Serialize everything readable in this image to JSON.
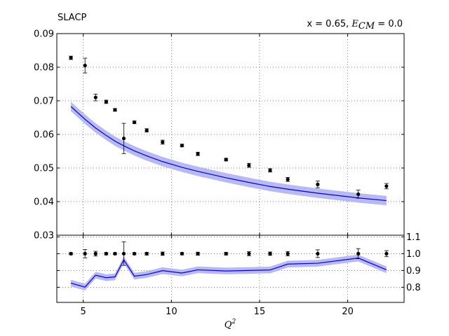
{
  "chart_data": [
    {
      "type": "line",
      "panel": "main",
      "title_left": "SLACP",
      "title_right": {
        "prefix": "x = 0.65, ",
        "sym": "E",
        "sub": "CM",
        "suffix": " = 0.0"
      },
      "xlim": [
        3.5,
        23.2
      ],
      "ylim": [
        0.03,
        0.09
      ],
      "yticks": [
        0.03,
        0.04,
        0.05,
        0.06,
        0.07,
        0.08,
        0.09
      ],
      "ytick_labels": [
        "0.03",
        "0.04",
        "0.05",
        "0.06",
        "0.07",
        "0.08",
        "0.09"
      ],
      "xticks": [
        5,
        10,
        15,
        20
      ],
      "grid": true,
      "data_points": {
        "x": [
          4.3,
          5.1,
          5.7,
          6.3,
          6.8,
          7.3,
          7.9,
          8.6,
          9.5,
          10.6,
          11.5,
          13.1,
          14.4,
          15.6,
          16.6,
          18.3,
          20.6,
          22.2
        ],
        "y": [
          0.0828,
          0.0805,
          0.071,
          0.0697,
          0.0673,
          0.0588,
          0.0636,
          0.0612,
          0.0577,
          0.0567,
          0.0542,
          0.0525,
          0.0508,
          0.0493,
          0.0466,
          0.0451,
          0.0422,
          0.0446
        ],
        "err": [
          0.0005,
          0.0022,
          0.001,
          0.0005,
          0.0004,
          0.0045,
          0.0004,
          0.0005,
          0.0006,
          0.0004,
          0.0005,
          0.0004,
          0.0006,
          0.0005,
          0.0006,
          0.001,
          0.0012,
          0.0008
        ]
      },
      "theory": {
        "x": [
          4.3,
          5.1,
          5.7,
          6.3,
          6.8,
          7.3,
          7.9,
          8.6,
          9.5,
          10.6,
          11.5,
          13.1,
          14.4,
          15.6,
          16.6,
          18.3,
          20.6,
          22.2
        ],
        "y": [
          0.0683,
          0.0645,
          0.0619,
          0.0597,
          0.058,
          0.0566,
          0.0551,
          0.0536,
          0.0519,
          0.0502,
          0.049,
          0.0471,
          0.0457,
          0.0445,
          0.0437,
          0.0425,
          0.0411,
          0.0403
        ],
        "band": 0.0014
      },
      "colors": {
        "theory_line": "#0000cc",
        "band": "#b8b8f2",
        "points": "#000000"
      }
    },
    {
      "type": "line",
      "panel": "ratio",
      "xlabel": "Q",
      "xlabel_sup": "2",
      "xlim": [
        3.5,
        23.2
      ],
      "ylim": [
        0.71,
        1.11
      ],
      "yticks": [
        0.8,
        0.9,
        1.0,
        1.1
      ],
      "ytick_labels": [
        "0.8",
        "0.9",
        "1.0",
        "1.1"
      ],
      "xticks": [
        5,
        10,
        15,
        20
      ],
      "xtick_labels": [
        "5",
        "10",
        "15",
        "20"
      ],
      "grid": true,
      "data_points": {
        "x": [
          4.3,
          5.1,
          5.7,
          6.3,
          6.8,
          7.3,
          7.9,
          8.6,
          9.5,
          10.6,
          11.5,
          13.1,
          14.4,
          15.6,
          16.6,
          18.3,
          20.6,
          22.2
        ],
        "y": [
          1.0,
          1.0,
          1.0,
          1.0,
          1.0,
          1.0,
          1.0,
          1.0,
          1.0,
          1.0,
          1.0,
          1.0,
          1.0,
          1.0,
          1.0,
          1.0,
          1.0,
          1.0
        ],
        "err": [
          0.006,
          0.025,
          0.014,
          0.007,
          0.006,
          0.07,
          0.006,
          0.008,
          0.01,
          0.007,
          0.009,
          0.008,
          0.012,
          0.01,
          0.013,
          0.023,
          0.03,
          0.018
        ]
      },
      "theory": {
        "x": [
          4.3,
          5.1,
          5.7,
          6.3,
          6.8,
          7.3,
          7.9,
          8.6,
          9.5,
          10.6,
          11.5,
          13.1,
          14.4,
          15.6,
          16.6,
          18.3,
          20.6,
          22.2
        ],
        "y": [
          0.825,
          0.801,
          0.872,
          0.857,
          0.862,
          0.963,
          0.866,
          0.876,
          0.899,
          0.885,
          0.904,
          0.897,
          0.9,
          0.903,
          0.938,
          0.943,
          0.974,
          0.904
        ],
        "band": 0.02
      },
      "colors": {
        "theory_line": "#0000cc",
        "band": "#b8b8f2",
        "points": "#000000"
      }
    }
  ]
}
